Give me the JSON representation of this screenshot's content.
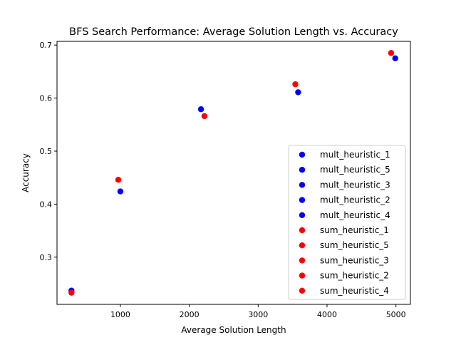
{
  "chart_data": {
    "type": "scatter",
    "title": "BFS Search Performance: Average Solution Length vs. Accuracy",
    "xlabel": "Average Solution Length",
    "ylabel": "Accuracy",
    "xlim": [
      80,
      5210
    ],
    "ylim": [
      0.211,
      0.707
    ],
    "xticks": [
      1000,
      2000,
      3000,
      4000,
      5000
    ],
    "xtick_labels": [
      "1000",
      "2000",
      "3000",
      "4000",
      "5000"
    ],
    "yticks": [
      0.3,
      0.4,
      0.5,
      0.6,
      0.7
    ],
    "ytick_labels": [
      "0.3",
      "0.4",
      "0.5",
      "0.6",
      "0.7"
    ],
    "grid": false,
    "legend": "lower-right",
    "series": [
      {
        "name": "mult_heuristic_1",
        "color": "#0000ff",
        "x": [
          3580
        ],
        "y": [
          0.611
        ]
      },
      {
        "name": "mult_heuristic_5",
        "color": "#0000ff",
        "x": [
          4990
        ],
        "y": [
          0.675
        ]
      },
      {
        "name": "mult_heuristic_3",
        "color": "#0000ff",
        "x": [
          2170
        ],
        "y": [
          0.579
        ]
      },
      {
        "name": "mult_heuristic_2",
        "color": "#0000ff",
        "x": [
          1000
        ],
        "y": [
          0.424
        ]
      },
      {
        "name": "mult_heuristic_4",
        "color": "#0000ff",
        "x": [
          290
        ],
        "y": [
          0.237
        ]
      },
      {
        "name": "sum_heuristic_1",
        "color": "#ff0000",
        "x": [
          3540
        ],
        "y": [
          0.626
        ]
      },
      {
        "name": "sum_heuristic_5",
        "color": "#ff0000",
        "x": [
          4930
        ],
        "y": [
          0.685
        ]
      },
      {
        "name": "sum_heuristic_3",
        "color": "#ff0000",
        "x": [
          2220
        ],
        "y": [
          0.566
        ]
      },
      {
        "name": "sum_heuristic_2",
        "color": "#ff0000",
        "x": [
          970
        ],
        "y": [
          0.446
        ]
      },
      {
        "name": "sum_heuristic_4",
        "color": "#ff0000",
        "x": [
          290
        ],
        "y": [
          0.233
        ]
      }
    ]
  }
}
